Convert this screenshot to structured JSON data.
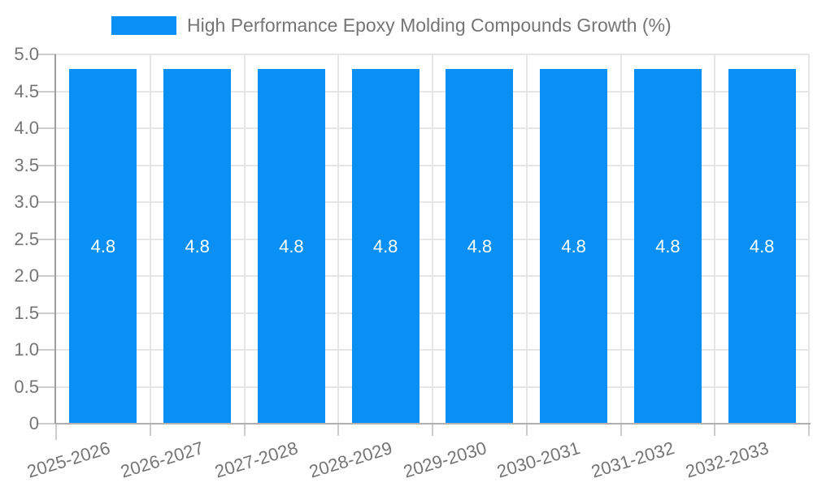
{
  "legend": {
    "label": "High Performance Epoxy Molding Compounds Growth (%)",
    "position": "top"
  },
  "chart_data": {
    "type": "bar",
    "title": "",
    "xlabel": "",
    "ylabel": "",
    "categories": [
      "2025-2026",
      "2026-2027",
      "2027-2028",
      "2028-2029",
      "2029-2030",
      "2030-2031",
      "2031-2032",
      "2032-2033"
    ],
    "series": [
      {
        "name": "High Performance Epoxy Molding Compounds Growth (%)",
        "values": [
          4.8,
          4.8,
          4.8,
          4.8,
          4.8,
          4.8,
          4.8,
          4.8
        ],
        "bar_labels": [
          "4.8",
          "4.8",
          "4.8",
          "4.8",
          "4.8",
          "4.8",
          "4.8",
          "4.8"
        ]
      }
    ],
    "ylim": [
      0,
      5
    ],
    "y_ticks": [
      0,
      0.5,
      1,
      1.5,
      2,
      2.5,
      3,
      3.5,
      4,
      4.5,
      5
    ],
    "y_tick_labels": [
      "0",
      "0.5",
      "1.0",
      "1.5",
      "2.0",
      "2.5",
      "3.0",
      "3.5",
      "4.0",
      "4.5",
      "5.0"
    ],
    "grid": true,
    "legend_position": "top",
    "x_label_rotation_deg": -17,
    "colors": {
      "bar": "#0a90f5",
      "bar_label_text": "#ffffff",
      "axis_text": "#757575",
      "gridline": "#e6e6e6",
      "tick": "#cccccc",
      "y_axis_line": "#9e9e9e",
      "x_axis_line": "#b0b0b0",
      "background": "#ffffff"
    }
  }
}
